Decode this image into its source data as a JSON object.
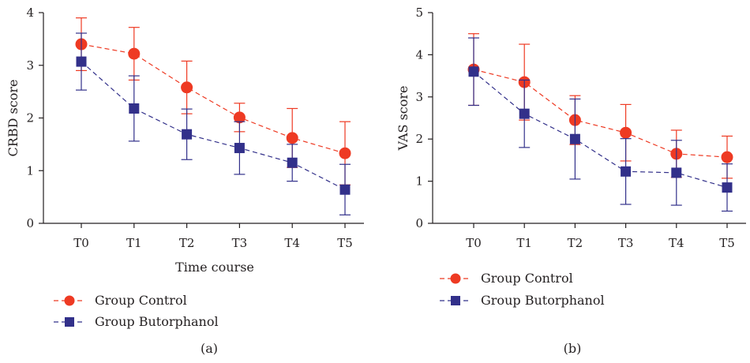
{
  "colors": {
    "control": "#ee3a23",
    "butorphanol": "#32308a",
    "axis": "#231f20"
  },
  "chart_data": [
    {
      "type": "line",
      "panel_label": "(a)",
      "xlabel": "Time course",
      "ylabel": "CRBD score",
      "categories": [
        "T0",
        "T1",
        "T2",
        "T3",
        "T4",
        "T5"
      ],
      "ylim": [
        0,
        4
      ],
      "yticks": [
        "0",
        "1",
        "2",
        "3",
        "4"
      ],
      "grid": false,
      "legend_position": "below",
      "series": [
        {
          "name": "Group Control",
          "marker": "circle",
          "color": "#ee3a23",
          "values": [
            3.4,
            3.22,
            2.58,
            2.01,
            1.62,
            1.33
          ],
          "error": [
            0.5,
            0.5,
            0.5,
            0.27,
            0.56,
            0.6
          ]
        },
        {
          "name": "Group Butorphanol",
          "marker": "square",
          "color": "#32308a",
          "values": [
            3.07,
            2.18,
            1.69,
            1.43,
            1.15,
            0.64
          ],
          "error": [
            0.54,
            0.62,
            0.48,
            0.5,
            0.35,
            0.48
          ]
        }
      ]
    },
    {
      "type": "line",
      "panel_label": "(b)",
      "xlabel": "",
      "ylabel": "VAS score",
      "categories": [
        "T0",
        "T1",
        "T2",
        "T3",
        "T4",
        "T5"
      ],
      "ylim": [
        0,
        5
      ],
      "yticks": [
        "0",
        "1",
        "2",
        "3",
        "4",
        "5"
      ],
      "grid": false,
      "legend_position": "below",
      "series": [
        {
          "name": "Group Control",
          "marker": "circle",
          "color": "#ee3a23",
          "values": [
            3.65,
            3.35,
            2.45,
            2.15,
            1.65,
            1.57
          ],
          "error": [
            0.85,
            0.9,
            0.58,
            0.67,
            0.56,
            0.5
          ]
        },
        {
          "name": "Group Butorphanol",
          "marker": "square",
          "color": "#32308a",
          "values": [
            3.6,
            2.6,
            2.0,
            1.23,
            1.2,
            0.85
          ],
          "error": [
            0.8,
            0.8,
            0.95,
            0.78,
            0.77,
            0.56
          ]
        }
      ]
    }
  ]
}
